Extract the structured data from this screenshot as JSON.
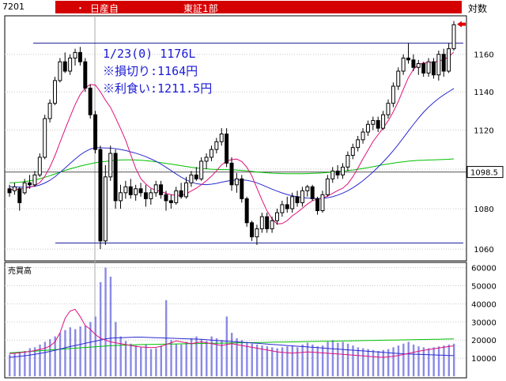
{
  "header": {
    "code": "7201",
    "dot": "・",
    "name": "日産自",
    "market": "東証1部",
    "scale_label": "対数"
  },
  "annotations": {
    "line1": "1/23(0) 1176L",
    "line2": "※損切り:1164円",
    "line3": "※利食い:1211.5円"
  },
  "colors": {
    "up_candle": "#ffffff",
    "down_candle": "#000000",
    "ma_short": "#e0107a",
    "ma_mid": "#2a2ad0",
    "ma_long": "#00c000",
    "hline": "#1a1a9a",
    "volume_bar": "#8a8ae6",
    "header_red": "#d40000",
    "signal_arrow": "#e00000"
  },
  "chart_data": [
    {
      "type": "candlestick",
      "yscale": "log",
      "ylim": [
        1055,
        1180
      ],
      "yticks": [
        1060,
        1080,
        1100,
        1120,
        1140,
        1160
      ],
      "price_tag": "1098.5",
      "hlines": [
        1098.5,
        1166,
        1063
      ],
      "signal_marker": "1176",
      "ohlc": [
        [
          1090,
          1092,
          1086,
          1088
        ],
        [
          1089,
          1093,
          1087,
          1091
        ],
        [
          1090,
          1091,
          1079,
          1083
        ],
        [
          1088,
          1095,
          1087,
          1093
        ],
        [
          1093,
          1097,
          1090,
          1092
        ],
        [
          1092,
          1099,
          1091,
          1097
        ],
        [
          1097,
          1108,
          1096,
          1106
        ],
        [
          1106,
          1128,
          1105,
          1126
        ],
        [
          1126,
          1136,
          1124,
          1134
        ],
        [
          1134,
          1148,
          1133,
          1146
        ],
        [
          1146,
          1158,
          1145,
          1156
        ],
        [
          1156,
          1161,
          1150,
          1151
        ],
        [
          1151,
          1160,
          1149,
          1158
        ],
        [
          1158,
          1163,
          1154,
          1161
        ],
        [
          1161,
          1164,
          1154,
          1156
        ],
        [
          1156,
          1158,
          1140,
          1142
        ],
        [
          1142,
          1144,
          1126,
          1128
        ],
        [
          1128,
          1130,
          1108,
          1110
        ],
        [
          1110,
          1112,
          1060,
          1064
        ],
        [
          1064,
          1102,
          1062,
          1096
        ],
        [
          1096,
          1112,
          1094,
          1108
        ],
        [
          1108,
          1110,
          1080,
          1084
        ],
        [
          1084,
          1092,
          1080,
          1088
        ],
        [
          1088,
          1094,
          1085,
          1091
        ],
        [
          1091,
          1095,
          1085,
          1087
        ],
        [
          1087,
          1092,
          1084,
          1090
        ],
        [
          1090,
          1093,
          1086,
          1088
        ],
        [
          1088,
          1092,
          1081,
          1085
        ],
        [
          1085,
          1090,
          1082,
          1088
        ],
        [
          1088,
          1094,
          1086,
          1092
        ],
        [
          1092,
          1094,
          1085,
          1087
        ],
        [
          1087,
          1089,
          1079,
          1084
        ],
        [
          1084,
          1087,
          1080,
          1083
        ],
        [
          1083,
          1091,
          1082,
          1089
        ],
        [
          1089,
          1093,
          1085,
          1086
        ],
        [
          1086,
          1096,
          1085,
          1093
        ],
        [
          1093,
          1099,
          1091,
          1097
        ],
        [
          1097,
          1101,
          1094,
          1095
        ],
        [
          1095,
          1106,
          1094,
          1104
        ],
        [
          1104,
          1108,
          1100,
          1106
        ],
        [
          1106,
          1112,
          1104,
          1110
        ],
        [
          1110,
          1116,
          1108,
          1114
        ],
        [
          1114,
          1121,
          1112,
          1118
        ],
        [
          1118,
          1121,
          1101,
          1103
        ],
        [
          1103,
          1106,
          1089,
          1092
        ],
        [
          1092,
          1098,
          1088,
          1095
        ],
        [
          1095,
          1097,
          1083,
          1085
        ],
        [
          1085,
          1086,
          1071,
          1073
        ],
        [
          1073,
          1074,
          1064,
          1066
        ],
        [
          1066,
          1072,
          1062,
          1070
        ],
        [
          1070,
          1078,
          1068,
          1076
        ],
        [
          1076,
          1078,
          1068,
          1070
        ],
        [
          1070,
          1076,
          1068,
          1074
        ],
        [
          1074,
          1080,
          1072,
          1078
        ],
        [
          1078,
          1084,
          1076,
          1082
        ],
        [
          1082,
          1086,
          1078,
          1080
        ],
        [
          1080,
          1088,
          1078,
          1086
        ],
        [
          1086,
          1089,
          1081,
          1083
        ],
        [
          1083,
          1091,
          1081,
          1089
        ],
        [
          1089,
          1092,
          1086,
          1091
        ],
        [
          1091,
          1092,
          1084,
          1085
        ],
        [
          1085,
          1086,
          1077,
          1079
        ],
        [
          1079,
          1089,
          1078,
          1087
        ],
        [
          1087,
          1097,
          1086,
          1095
        ],
        [
          1095,
          1101,
          1093,
          1099
        ],
        [
          1099,
          1102,
          1095,
          1097
        ],
        [
          1097,
          1103,
          1095,
          1101
        ],
        [
          1101,
          1109,
          1099,
          1107
        ],
        [
          1107,
          1113,
          1105,
          1111
        ],
        [
          1111,
          1117,
          1109,
          1115
        ],
        [
          1115,
          1121,
          1113,
          1119
        ],
        [
          1119,
          1125,
          1117,
          1123
        ],
        [
          1123,
          1127,
          1120,
          1125
        ],
        [
          1125,
          1127,
          1119,
          1121
        ],
        [
          1121,
          1130,
          1120,
          1128
        ],
        [
          1128,
          1136,
          1126,
          1134
        ],
        [
          1134,
          1145,
          1132,
          1143
        ],
        [
          1143,
          1153,
          1141,
          1151
        ],
        [
          1151,
          1160,
          1149,
          1158
        ],
        [
          1158,
          1166,
          1155,
          1157
        ],
        [
          1157,
          1160,
          1151,
          1153
        ],
        [
          1153,
          1157,
          1149,
          1155
        ],
        [
          1155,
          1156,
          1148,
          1150
        ],
        [
          1150,
          1158,
          1148,
          1156
        ],
        [
          1156,
          1158,
          1147,
          1149
        ],
        [
          1149,
          1162,
          1146,
          1160
        ],
        [
          1160,
          1163,
          1148,
          1151
        ],
        [
          1151,
          1166,
          1150,
          1163
        ],
        [
          1163,
          1178,
          1162,
          1176
        ]
      ],
      "ma_short": [
        1089.6,
        1089.6,
        1089.8,
        1090.2,
        1090.7,
        1091.6,
        1093.1,
        1096.3,
        1101.0,
        1106.8,
        1113.7,
        1120.4,
        1126.9,
        1133.3,
        1138.6,
        1142.1,
        1143.9,
        1143.6,
        1140.0,
        1135.7,
        1131.9,
        1126.5,
        1120.8,
        1114.8,
        1107.4,
        1100.3,
        1095.2,
        1092.4,
        1090.3,
        1089.3,
        1088.7,
        1087.7,
        1087.0,
        1086.6,
        1086.7,
        1087.4,
        1088.9,
        1090.3,
        1092.1,
        1094.1,
        1096.4,
        1099.1,
        1102.1,
        1104.1,
        1104.8,
        1105.1,
        1103.8,
        1100.9,
        1096.6,
        1090.4,
        1084.4,
        1078.9,
        1074.9,
        1072.4,
        1072.6,
        1074.1,
        1076.4,
        1078.2,
        1080.2,
        1082.3,
        1084.0,
        1084.8,
        1085.3,
        1086.3,
        1087.7,
        1089.1,
        1090.3,
        1092.5,
        1096.1,
        1100.5,
        1105.2,
        1109.6,
        1114.1,
        1117.6,
        1121.1,
        1124.9,
        1129.5,
        1135.0,
        1141.3,
        1147.5,
        1151.9,
        1154.5,
        1155.4,
        1155.7,
        1155.6,
        1156.3,
        1157.2,
        1158.6,
        1161.3
      ],
      "ma_mid": [
        1091.0,
        1090.9,
        1090.8,
        1090.9,
        1091.0,
        1091.3,
        1091.9,
        1092.9,
        1094.3,
        1096.1,
        1098.3,
        1100.5,
        1102.8,
        1105.1,
        1107.2,
        1108.9,
        1110.2,
        1111.0,
        1110.9,
        1110.8,
        1110.7,
        1110.4,
        1110.0,
        1109.5,
        1108.8,
        1108.1,
        1107.3,
        1106.3,
        1105.2,
        1104.0,
        1102.5,
        1100.9,
        1099.2,
        1097.5,
        1095.9,
        1094.5,
        1093.4,
        1092.6,
        1092.2,
        1092.1,
        1092.3,
        1092.7,
        1093.3,
        1093.8,
        1094.2,
        1094.4,
        1094.5,
        1094.3,
        1093.8,
        1093.0,
        1092.0,
        1090.9,
        1089.8,
        1088.8,
        1087.9,
        1087.1,
        1086.5,
        1086.0,
        1085.6,
        1085.3,
        1085.2,
        1085.1,
        1085.2,
        1085.5,
        1086.0,
        1086.8,
        1087.8,
        1089.0,
        1090.5,
        1092.2,
        1094.1,
        1096.2,
        1098.5,
        1101.0,
        1103.6,
        1106.4,
        1109.4,
        1112.6,
        1116.0,
        1119.5,
        1122.9,
        1126.2,
        1129.3,
        1132.0,
        1134.4,
        1136.5,
        1138.4,
        1140.1,
        1141.8
      ],
      "ma_long": [
        1093.0,
        1093.1,
        1093.3,
        1093.6,
        1094.0,
        1094.5,
        1095.1,
        1095.8,
        1096.6,
        1097.5,
        1098.4,
        1099.3,
        1100.1,
        1100.8,
        1101.5,
        1102.1,
        1102.7,
        1103.2,
        1103.6,
        1103.9,
        1104.2,
        1104.4,
        1104.6,
        1104.7,
        1104.7,
        1104.6,
        1104.5,
        1104.3,
        1104.0,
        1103.7,
        1103.3,
        1102.9,
        1102.5,
        1102.1,
        1101.7,
        1101.3,
        1100.9,
        1100.6,
        1100.3,
        1100.1,
        1099.9,
        1099.8,
        1099.7,
        1099.7,
        1099.6,
        1099.5,
        1099.3,
        1099.1,
        1098.8,
        1098.5,
        1098.3,
        1098.1,
        1097.9,
        1097.8,
        1097.7,
        1097.6,
        1097.6,
        1097.6,
        1097.6,
        1097.7,
        1097.8,
        1097.9,
        1098.0,
        1098.2,
        1098.4,
        1098.6,
        1098.9,
        1099.2,
        1099.5,
        1099.9,
        1100.3,
        1100.7,
        1101.2,
        1101.7,
        1102.2,
        1102.6,
        1103.0,
        1103.4,
        1103.7,
        1104.0,
        1104.2,
        1104.4,
        1104.5,
        1104.6,
        1104.7,
        1104.8,
        1104.9,
        1105.0,
        1105.2
      ]
    },
    {
      "type": "bar",
      "title": "売買高",
      "ylim": [
        0,
        62000
      ],
      "yticks": [
        10000,
        20000,
        30000,
        40000,
        50000,
        60000
      ],
      "values": [
        12000,
        12500,
        13500,
        14000,
        15500,
        16000,
        17500,
        19000,
        20500,
        22000,
        24000,
        25500,
        27000,
        26000,
        27500,
        28000,
        30000,
        33000,
        52000,
        60000,
        55000,
        30000,
        22000,
        19500,
        18000,
        17000,
        16000,
        17500,
        15000,
        15500,
        17000,
        42000,
        20000,
        18000,
        17500,
        19000,
        21000,
        22000,
        20500,
        19500,
        22000,
        21000,
        20000,
        33000,
        24000,
        21000,
        20000,
        19000,
        18000,
        17500,
        17000,
        16500,
        16000,
        15500,
        16000,
        16500,
        17000,
        16000,
        17500,
        18500,
        17500,
        16500,
        17000,
        19000,
        20000,
        18500,
        19000,
        18000,
        17000,
        16000,
        15500,
        15000,
        14500,
        14000,
        14500,
        15000,
        16000,
        17000,
        18000,
        19000,
        17500,
        16500,
        16000,
        15500,
        16000,
        16500,
        17000,
        17500,
        18000
      ],
      "ma_short": [
        12500,
        12700,
        13000,
        13300,
        13700,
        14200,
        14800,
        15500,
        16600,
        19000,
        24000,
        32000,
        36000,
        37000,
        33000,
        28000,
        26000,
        23000,
        21000,
        20000,
        19000,
        18500,
        18000,
        17500,
        17000,
        16500,
        16200,
        16000,
        15800,
        16000,
        16500,
        17500,
        18500,
        19500,
        19000,
        18500,
        18000,
        18500,
        19000,
        18500,
        18000,
        17500,
        17000,
        17500,
        18000,
        17500,
        17000,
        16500,
        16000,
        15500,
        15000,
        14500,
        14000,
        13500,
        13200,
        13000,
        12800,
        13000,
        13200,
        13400,
        13300,
        13100,
        12900,
        12700,
        12500,
        12300,
        12100,
        11900,
        11700,
        11500,
        11300,
        11000,
        10800,
        10600,
        10500,
        10700,
        11000,
        11500,
        12000,
        12600,
        13200,
        13800,
        14300,
        14800,
        15200,
        15600,
        16000,
        16400,
        16800
      ],
      "ma_mid": [
        10500,
        10700,
        11000,
        11300,
        11700,
        12100,
        12600,
        13100,
        13700,
        14300,
        15000,
        15700,
        16400,
        17000,
        17600,
        18200,
        18800,
        19400,
        20000,
        20600,
        21000,
        21200,
        21300,
        21400,
        21500,
        21600,
        21600,
        21500,
        21400,
        21300,
        21200,
        21100,
        21000,
        20900,
        20800,
        20700,
        20600,
        20500,
        20400,
        20200,
        20000,
        19800,
        19600,
        19400,
        19200,
        19000,
        18800,
        18600,
        18400,
        18200,
        18000,
        17800,
        17600,
        17400,
        17200,
        17000,
        16800,
        16600,
        16400,
        16200,
        16000,
        15800,
        15600,
        15400,
        15200,
        15000,
        14800,
        14600,
        14400,
        14200,
        14000,
        13800,
        13600,
        13400,
        13200,
        13000,
        12800,
        12600,
        12400,
        12300,
        12200,
        12100,
        12000,
        11900,
        11800,
        11700,
        11600,
        11500,
        11400
      ],
      "ma_long": [
        13000,
        13100,
        13300,
        13500,
        13700,
        13900,
        14100,
        14300,
        14500,
        14700,
        14900,
        15100,
        15300,
        15500,
        15700,
        15900,
        16100,
        16300,
        16500,
        16700,
        16900,
        17000,
        17100,
        17200,
        17300,
        17400,
        17500,
        17550,
        17600,
        17650,
        17700,
        17750,
        17800,
        17850,
        17900,
        17950,
        18000,
        18050,
        18100,
        18150,
        18200,
        18250,
        18300,
        18350,
        18400,
        18450,
        18500,
        18550,
        18600,
        18650,
        18700,
        18750,
        18800,
        18850,
        18900,
        18950,
        19000,
        19050,
        19100,
        19150,
        19200,
        19250,
        19300,
        19350,
        19400,
        19450,
        19500,
        19550,
        19600,
        19650,
        19700,
        19750,
        19800,
        19850,
        19900,
        19950,
        20000,
        20050,
        20100,
        20150,
        20200,
        20250,
        20300,
        20350,
        20400,
        20450,
        20500,
        20550,
        20600
      ]
    }
  ]
}
